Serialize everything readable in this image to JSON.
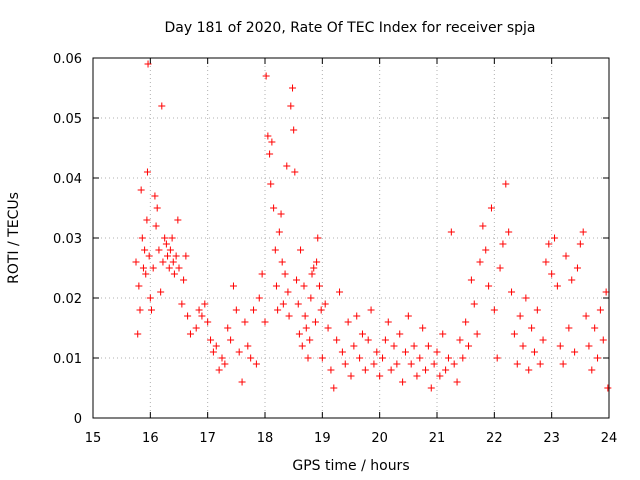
{
  "chart_data": {
    "type": "scatter",
    "title": "Day 181 of 2020, Rate Of TEC Index for receiver spja",
    "xlabel": "GPS time / hours",
    "ylabel": "ROTI / TECUs",
    "xlim": [
      15,
      24
    ],
    "ylim": [
      0,
      0.06
    ],
    "xticks": [
      15,
      16,
      17,
      18,
      19,
      20,
      21,
      22,
      23,
      24
    ],
    "xtick_labels": [
      "15",
      "16",
      "17",
      "18",
      "19",
      "20",
      "21",
      "22",
      "23",
      "24"
    ],
    "yticks": [
      0,
      0.01,
      0.02,
      0.03,
      0.04,
      0.05,
      0.06
    ],
    "ytick_labels": [
      "0",
      "0.01",
      "0.02",
      "0.03",
      "0.04",
      "0.05",
      "0.06"
    ],
    "grid": true,
    "marker": "+",
    "marker_color": "#ff0000",
    "series": [
      {
        "name": "ROTI",
        "points": [
          [
            15.75,
            0.026
          ],
          [
            15.78,
            0.014
          ],
          [
            15.8,
            0.022
          ],
          [
            15.82,
            0.018
          ],
          [
            15.84,
            0.038
          ],
          [
            15.86,
            0.03
          ],
          [
            15.88,
            0.025
          ],
          [
            15.9,
            0.028
          ],
          [
            15.92,
            0.024
          ],
          [
            15.94,
            0.033
          ],
          [
            15.95,
            0.041
          ],
          [
            15.96,
            0.059
          ],
          [
            15.98,
            0.027
          ],
          [
            16.0,
            0.02
          ],
          [
            16.02,
            0.018
          ],
          [
            16.05,
            0.025
          ],
          [
            16.08,
            0.037
          ],
          [
            16.1,
            0.032
          ],
          [
            16.12,
            0.035
          ],
          [
            16.15,
            0.028
          ],
          [
            16.18,
            0.021
          ],
          [
            16.2,
            0.052
          ],
          [
            16.22,
            0.026
          ],
          [
            16.25,
            0.03
          ],
          [
            16.28,
            0.029
          ],
          [
            16.3,
            0.027
          ],
          [
            16.33,
            0.025
          ],
          [
            16.35,
            0.028
          ],
          [
            16.38,
            0.03
          ],
          [
            16.4,
            0.026
          ],
          [
            16.42,
            0.024
          ],
          [
            16.45,
            0.027
          ],
          [
            16.48,
            0.033
          ],
          [
            16.5,
            0.025
          ],
          [
            16.55,
            0.019
          ],
          [
            16.58,
            0.023
          ],
          [
            16.62,
            0.027
          ],
          [
            16.65,
            0.017
          ],
          [
            16.7,
            0.014
          ],
          [
            16.8,
            0.015
          ],
          [
            16.85,
            0.018
          ],
          [
            16.9,
            0.017
          ],
          [
            16.95,
            0.019
          ],
          [
            17.0,
            0.016
          ],
          [
            17.05,
            0.013
          ],
          [
            17.1,
            0.011
          ],
          [
            17.15,
            0.012
          ],
          [
            17.2,
            0.008
          ],
          [
            17.25,
            0.01
          ],
          [
            17.3,
            0.009
          ],
          [
            17.35,
            0.015
          ],
          [
            17.4,
            0.013
          ],
          [
            17.45,
            0.022
          ],
          [
            17.5,
            0.018
          ],
          [
            17.55,
            0.011
          ],
          [
            17.6,
            0.006
          ],
          [
            17.65,
            0.016
          ],
          [
            17.7,
            0.012
          ],
          [
            17.75,
            0.01
          ],
          [
            17.8,
            0.018
          ],
          [
            17.85,
            0.009
          ],
          [
            17.9,
            0.02
          ],
          [
            17.95,
            0.024
          ],
          [
            18.0,
            0.016
          ],
          [
            18.02,
            0.057
          ],
          [
            18.05,
            0.047
          ],
          [
            18.08,
            0.044
          ],
          [
            18.1,
            0.039
          ],
          [
            18.12,
            0.046
          ],
          [
            18.15,
            0.035
          ],
          [
            18.18,
            0.028
          ],
          [
            18.2,
            0.022
          ],
          [
            18.22,
            0.018
          ],
          [
            18.25,
            0.031
          ],
          [
            18.28,
            0.034
          ],
          [
            18.3,
            0.026
          ],
          [
            18.32,
            0.019
          ],
          [
            18.35,
            0.024
          ],
          [
            18.38,
            0.042
          ],
          [
            18.4,
            0.021
          ],
          [
            18.42,
            0.017
          ],
          [
            18.45,
            0.052
          ],
          [
            18.48,
            0.055
          ],
          [
            18.5,
            0.048
          ],
          [
            18.52,
            0.041
          ],
          [
            18.55,
            0.023
          ],
          [
            18.58,
            0.019
          ],
          [
            18.6,
            0.014
          ],
          [
            18.62,
            0.028
          ],
          [
            18.65,
            0.012
          ],
          [
            18.68,
            0.022
          ],
          [
            18.7,
            0.017
          ],
          [
            18.72,
            0.015
          ],
          [
            18.75,
            0.01
          ],
          [
            18.78,
            0.013
          ],
          [
            18.8,
            0.02
          ],
          [
            18.82,
            0.024
          ],
          [
            18.85,
            0.025
          ],
          [
            18.88,
            0.016
          ],
          [
            18.9,
            0.026
          ],
          [
            18.92,
            0.03
          ],
          [
            18.95,
            0.022
          ],
          [
            18.98,
            0.018
          ],
          [
            19.0,
            0.01
          ],
          [
            19.05,
            0.019
          ],
          [
            19.1,
            0.015
          ],
          [
            19.15,
            0.008
          ],
          [
            19.2,
            0.005
          ],
          [
            19.25,
            0.013
          ],
          [
            19.3,
            0.021
          ],
          [
            19.35,
            0.011
          ],
          [
            19.4,
            0.009
          ],
          [
            19.45,
            0.016
          ],
          [
            19.5,
            0.007
          ],
          [
            19.55,
            0.012
          ],
          [
            19.6,
            0.017
          ],
          [
            19.65,
            0.01
          ],
          [
            19.7,
            0.014
          ],
          [
            19.75,
            0.008
          ],
          [
            19.8,
            0.013
          ],
          [
            19.85,
            0.018
          ],
          [
            19.9,
            0.009
          ],
          [
            19.95,
            0.011
          ],
          [
            20.0,
            0.007
          ],
          [
            20.05,
            0.01
          ],
          [
            20.1,
            0.013
          ],
          [
            20.15,
            0.016
          ],
          [
            20.2,
            0.008
          ],
          [
            20.25,
            0.012
          ],
          [
            20.3,
            0.009
          ],
          [
            20.35,
            0.014
          ],
          [
            20.4,
            0.006
          ],
          [
            20.45,
            0.011
          ],
          [
            20.5,
            0.017
          ],
          [
            20.55,
            0.009
          ],
          [
            20.6,
            0.012
          ],
          [
            20.65,
            0.007
          ],
          [
            20.7,
            0.01
          ],
          [
            20.75,
            0.015
          ],
          [
            20.8,
            0.008
          ],
          [
            20.85,
            0.012
          ],
          [
            20.9,
            0.005
          ],
          [
            20.95,
            0.009
          ],
          [
            21.0,
            0.011
          ],
          [
            21.05,
            0.007
          ],
          [
            21.1,
            0.014
          ],
          [
            21.15,
            0.008
          ],
          [
            21.2,
            0.01
          ],
          [
            21.25,
            0.031
          ],
          [
            21.3,
            0.009
          ],
          [
            21.35,
            0.006
          ],
          [
            21.4,
            0.013
          ],
          [
            21.45,
            0.01
          ],
          [
            21.5,
            0.016
          ],
          [
            21.55,
            0.012
          ],
          [
            21.6,
            0.023
          ],
          [
            21.65,
            0.019
          ],
          [
            21.7,
            0.014
          ],
          [
            21.75,
            0.026
          ],
          [
            21.8,
            0.032
          ],
          [
            21.85,
            0.028
          ],
          [
            21.9,
            0.022
          ],
          [
            21.95,
            0.035
          ],
          [
            22.0,
            0.018
          ],
          [
            22.05,
            0.01
          ],
          [
            22.1,
            0.025
          ],
          [
            22.15,
            0.029
          ],
          [
            22.2,
            0.039
          ],
          [
            22.25,
            0.031
          ],
          [
            22.3,
            0.021
          ],
          [
            22.35,
            0.014
          ],
          [
            22.4,
            0.009
          ],
          [
            22.45,
            0.017
          ],
          [
            22.5,
            0.012
          ],
          [
            22.55,
            0.02
          ],
          [
            22.6,
            0.008
          ],
          [
            22.65,
            0.015
          ],
          [
            22.7,
            0.011
          ],
          [
            22.75,
            0.018
          ],
          [
            22.8,
            0.009
          ],
          [
            22.85,
            0.013
          ],
          [
            22.9,
            0.026
          ],
          [
            22.95,
            0.029
          ],
          [
            23.0,
            0.024
          ],
          [
            23.05,
            0.03
          ],
          [
            23.1,
            0.022
          ],
          [
            23.15,
            0.012
          ],
          [
            23.2,
            0.009
          ],
          [
            23.25,
            0.027
          ],
          [
            23.3,
            0.015
          ],
          [
            23.35,
            0.023
          ],
          [
            23.4,
            0.011
          ],
          [
            23.45,
            0.025
          ],
          [
            23.5,
            0.029
          ],
          [
            23.55,
            0.031
          ],
          [
            23.6,
            0.017
          ],
          [
            23.65,
            0.012
          ],
          [
            23.7,
            0.008
          ],
          [
            23.75,
            0.015
          ],
          [
            23.8,
            0.01
          ],
          [
            23.85,
            0.018
          ],
          [
            23.9,
            0.013
          ],
          [
            23.95,
            0.021
          ],
          [
            23.98,
            0.005
          ]
        ]
      }
    ]
  }
}
